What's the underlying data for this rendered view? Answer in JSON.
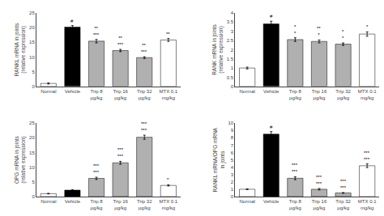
{
  "chart_data": [
    {
      "type": "bar",
      "ylabel": "RANKL mRNA in joints\n(relative expression)",
      "categories": [
        "Normal",
        "Vehicle",
        "Trip 8\nμg/kg",
        "Trip 16\nμg/kg",
        "Trip 32\nμg/kg",
        "MTX 0.1\nmg/kg"
      ],
      "values": [
        1.0,
        20.2,
        15.4,
        12.2,
        9.8,
        15.8
      ],
      "errors": [
        0.2,
        0.5,
        0.6,
        0.4,
        0.3,
        0.5
      ],
      "colors": [
        "white",
        "black",
        "#b0b0b0",
        "#b0b0b0",
        "#b0b0b0",
        "white"
      ],
      "ylim": [
        0,
        25
      ],
      "yticks": [
        0,
        5,
        10,
        15,
        20,
        25
      ],
      "grid": false,
      "annotations": [
        {
          "x": 1,
          "text": "#"
        },
        {
          "x": 2,
          "text": "**\n***"
        },
        {
          "x": 3,
          "text": "**\n***"
        },
        {
          "x": 4,
          "text": "**\n***"
        },
        {
          "x": 5,
          "text": "**"
        }
      ]
    },
    {
      "type": "bar",
      "ylabel": "RANK mRNA in joints\n(relative expression)",
      "categories": [
        "Normal",
        "Vehicle",
        "Trip 8\nμg/kg",
        "Trip 16\nμg/kg",
        "Trip 32\nμg/kg",
        "MTX 0.1\nmg/kg"
      ],
      "values": [
        1.0,
        3.4,
        2.55,
        2.45,
        2.3,
        2.85
      ],
      "errors": [
        0.05,
        0.15,
        0.1,
        0.08,
        0.07,
        0.12
      ],
      "colors": [
        "white",
        "black",
        "#b0b0b0",
        "#b0b0b0",
        "#b0b0b0",
        "white"
      ],
      "ylim": [
        0,
        4
      ],
      "yticks": [
        0,
        0.5,
        1,
        1.5,
        2,
        2.5,
        3,
        3.5,
        4
      ],
      "grid": false,
      "annotations": [
        {
          "x": 1,
          "text": "#"
        },
        {
          "x": 2,
          "text": "*\n*"
        },
        {
          "x": 3,
          "text": "**\n*"
        },
        {
          "x": 4,
          "text": "*\n*"
        },
        {
          "x": 5,
          "text": "*"
        }
      ]
    },
    {
      "type": "bar",
      "ylabel": "OPG mRNA in joints\n(relative expression)",
      "categories": [
        "Normal",
        "Vehicle",
        "Trip 8\nμg/kg",
        "Trip 16\nμg/kg",
        "Trip 32\nμg/kg",
        "MTX 0.1\nmg/kg"
      ],
      "values": [
        1.0,
        2.2,
        6.2,
        11.5,
        20.2,
        3.8
      ],
      "errors": [
        0.1,
        0.15,
        0.4,
        0.5,
        0.7,
        0.2
      ],
      "colors": [
        "white",
        "black",
        "#b0b0b0",
        "#b0b0b0",
        "#b0b0b0",
        "white"
      ],
      "ylim": [
        0,
        25
      ],
      "yticks": [
        0,
        5,
        10,
        15,
        20,
        25
      ],
      "grid": false,
      "annotations": [
        {
          "x": 2,
          "text": "***\n***"
        },
        {
          "x": 3,
          "text": "***\n***"
        },
        {
          "x": 4,
          "text": "***\n***"
        },
        {
          "x": 5,
          "text": "*"
        }
      ]
    },
    {
      "type": "bar",
      "ylabel": "RANKL mRNA/OPG mRNA\nin joints",
      "categories": [
        "Normal",
        "Vehicle",
        "Trip 8\nμg/kg",
        "Trip 16\nμg/kg",
        "Trip 32\nμg/kg",
        "MTX 0.1\nmg/kg"
      ],
      "values": [
        1.0,
        8.5,
        2.5,
        1.0,
        0.5,
        4.2
      ],
      "errors": [
        0.05,
        0.35,
        0.2,
        0.1,
        0.05,
        0.25
      ],
      "colors": [
        "white",
        "black",
        "#b0b0b0",
        "#b0b0b0",
        "#b0b0b0",
        "white"
      ],
      "ylim": [
        0,
        10
      ],
      "yticks": [
        0,
        1,
        2,
        3,
        4,
        5,
        6,
        7,
        8,
        9,
        10
      ],
      "grid": false,
      "annotations": [
        {
          "x": 1,
          "text": "#"
        },
        {
          "x": 2,
          "text": "***\n***"
        },
        {
          "x": 3,
          "text": "***\n***"
        },
        {
          "x": 4,
          "text": "***\n***"
        },
        {
          "x": 5,
          "text": "***\n***"
        }
      ]
    }
  ]
}
